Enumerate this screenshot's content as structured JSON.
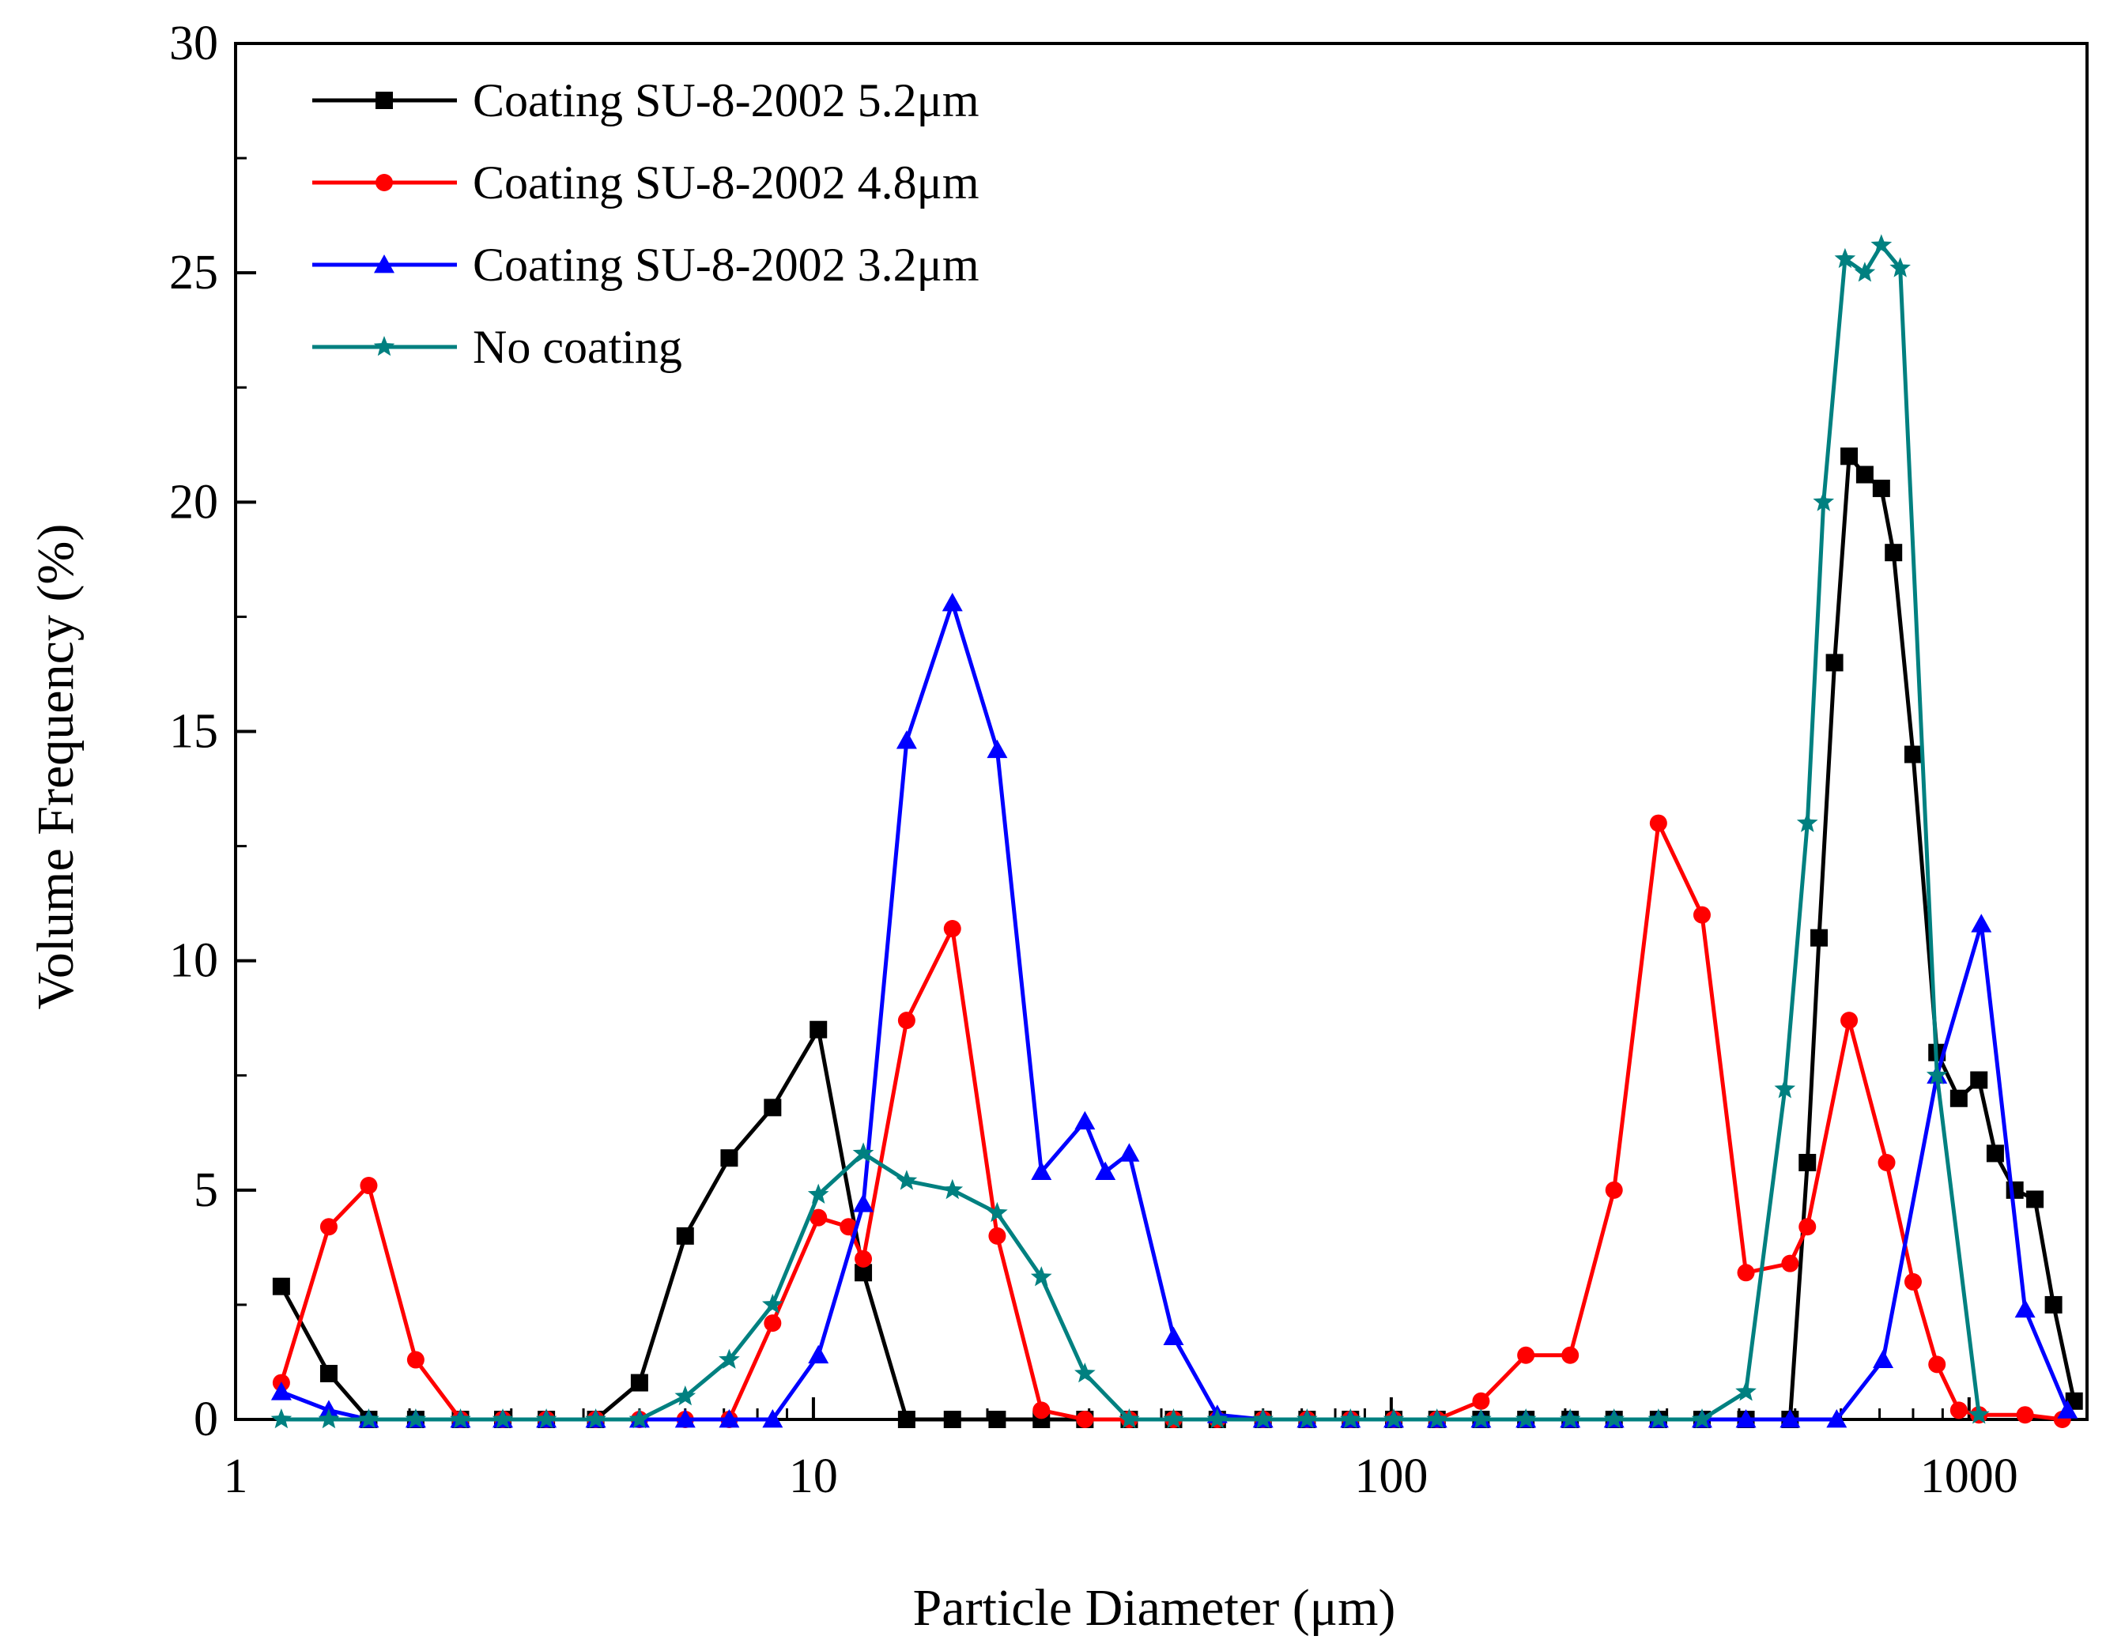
{
  "chart_data": {
    "type": "line",
    "title": "",
    "xlabel": "Particle Diameter (μm)",
    "ylabel": "Volume Frequency (%)",
    "xscale": "log",
    "xlim": [
      1,
      1600
    ],
    "ylim": [
      0,
      30
    ],
    "xticks": [
      {
        "value": 1,
        "label": "1"
      },
      {
        "value": 10,
        "label": "10"
      },
      {
        "value": 100,
        "label": "100"
      },
      {
        "value": 1000,
        "label": "1000"
      }
    ],
    "yticks": [
      {
        "value": 0,
        "label": "0"
      },
      {
        "value": 5,
        "label": "5"
      },
      {
        "value": 10,
        "label": "10"
      },
      {
        "value": 15,
        "label": "15"
      },
      {
        "value": 20,
        "label": "20"
      },
      {
        "value": 25,
        "label": "25"
      },
      {
        "value": 30,
        "label": "30"
      }
    ],
    "grid": false,
    "legend_position": "top-left",
    "series": [
      {
        "name": "Coating SU-8-2002 5.2μm",
        "color": "#000000",
        "marker": "square",
        "x": [
          1.2,
          1.45,
          1.7,
          2.05,
          2.45,
          2.9,
          3.45,
          4.2,
          5.0,
          6.0,
          7.15,
          8.5,
          10.2,
          12.2,
          14.5,
          17.4,
          20.8,
          24.8,
          29.5,
          35.2,
          42.0,
          50.0,
          60.0,
          71.5,
          85.0,
          101,
          120,
          143,
          171,
          204,
          243,
          290,
          345,
          411,
          490,
          525,
          550,
          585,
          620,
          660,
          705,
          740,
          800,
          880,
          960,
          1040,
          1110,
          1200,
          1300,
          1400,
          1520
        ],
        "values": [
          2.9,
          1.0,
          0.0,
          0.0,
          0.0,
          0.0,
          0.0,
          0.0,
          0.8,
          4.0,
          5.7,
          6.8,
          8.5,
          3.2,
          0.0,
          0.0,
          0.0,
          0.0,
          0.0,
          0.0,
          0.0,
          0.0,
          0.0,
          0.0,
          0.0,
          0.0,
          0.0,
          0.0,
          0.0,
          0.0,
          0.0,
          0.0,
          0.0,
          0.0,
          0.0,
          5.6,
          10.5,
          16.5,
          21.0,
          20.6,
          20.3,
          18.9,
          14.5,
          8.0,
          7.0,
          7.4,
          5.8,
          5.0,
          4.8,
          2.5,
          0.4
        ]
      },
      {
        "name": "Coating SU-8-2002 4.8μm",
        "color": "#ff0000",
        "marker": "circle",
        "x": [
          1.2,
          1.45,
          1.7,
          2.05,
          2.45,
          2.9,
          3.45,
          4.2,
          5.0,
          6.0,
          7.15,
          8.5,
          10.2,
          11.5,
          12.2,
          14.5,
          17.4,
          20.8,
          24.8,
          29.5,
          35.2,
          42.0,
          50.0,
          60.0,
          71.5,
          85.0,
          101,
          120,
          143,
          171,
          204,
          243,
          290,
          345,
          411,
          490,
          525,
          620,
          720,
          800,
          880,
          960,
          1040,
          1250,
          1450
        ],
        "values": [
          0.8,
          4.2,
          5.1,
          1.3,
          0.0,
          0.0,
          0.0,
          0.0,
          0.0,
          0.0,
          0.0,
          2.1,
          4.4,
          4.2,
          3.5,
          8.7,
          10.7,
          4.0,
          0.2,
          0.0,
          0.0,
          0.0,
          0.0,
          0.0,
          0.0,
          0.0,
          0.0,
          0.0,
          0.4,
          1.4,
          1.4,
          5.0,
          13.0,
          11.0,
          3.2,
          3.4,
          4.2,
          8.7,
          5.6,
          3.0,
          1.2,
          0.2,
          0.1,
          0.1,
          0.0
        ]
      },
      {
        "name": "Coating SU-8-2002 3.2μm",
        "color": "#0000ff",
        "marker": "triangle",
        "x": [
          1.2,
          1.45,
          1.7,
          2.05,
          2.45,
          2.9,
          3.45,
          4.2,
          5.0,
          6.0,
          7.15,
          8.5,
          10.2,
          12.2,
          14.5,
          17.4,
          20.8,
          24.8,
          29.5,
          32.0,
          35.2,
          42.0,
          50.0,
          60.0,
          71.5,
          85.0,
          101,
          120,
          143,
          171,
          204,
          243,
          290,
          345,
          411,
          490,
          590,
          710,
          880,
          1050,
          1250,
          1480
        ],
        "values": [
          0.6,
          0.2,
          0.0,
          0.0,
          0.0,
          0.0,
          0.0,
          0.0,
          0.0,
          0.0,
          0.0,
          0.0,
          1.4,
          4.7,
          14.8,
          17.8,
          14.6,
          5.4,
          6.5,
          5.4,
          5.8,
          1.8,
          0.1,
          0.0,
          0.0,
          0.0,
          0.0,
          0.0,
          0.0,
          0.0,
          0.0,
          0.0,
          0.0,
          0.0,
          0.0,
          0.0,
          0.0,
          1.3,
          7.5,
          10.8,
          2.4,
          0.2
        ]
      },
      {
        "name": "No coating",
        "color": "#008080",
        "marker": "star",
        "x": [
          1.2,
          1.45,
          1.7,
          2.05,
          2.45,
          2.9,
          3.45,
          4.2,
          5.0,
          6.0,
          7.15,
          8.5,
          10.2,
          12.2,
          14.5,
          17.4,
          20.8,
          24.8,
          29.5,
          35.2,
          42.0,
          50.0,
          60.0,
          71.5,
          85.0,
          101,
          120,
          143,
          171,
          204,
          243,
          290,
          345,
          411,
          480,
          525,
          560,
          610,
          660,
          705,
          760,
          880,
          1040
        ],
        "values": [
          0.0,
          0.0,
          0.0,
          0.0,
          0.0,
          0.0,
          0.0,
          0.0,
          0.0,
          0.5,
          1.3,
          2.5,
          4.9,
          5.8,
          5.2,
          5.0,
          4.5,
          3.1,
          1.0,
          0.0,
          0.0,
          0.0,
          0.0,
          0.0,
          0.0,
          0.0,
          0.0,
          0.0,
          0.0,
          0.0,
          0.0,
          0.0,
          0.0,
          0.6,
          7.2,
          13.0,
          20.0,
          25.3,
          25.0,
          25.6,
          25.1,
          7.5,
          0.1
        ]
      }
    ]
  }
}
